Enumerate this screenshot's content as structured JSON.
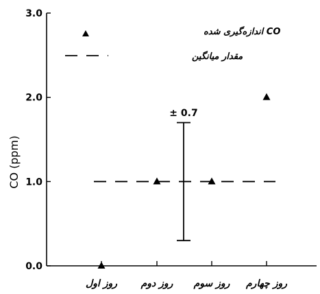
{
  "chart_data": {
    "type": "scatter",
    "title": "",
    "ylabel": "CO (ppm)",
    "xlabel": "",
    "ylim": [
      0,
      3
    ],
    "y_ticks": [
      {
        "value": 0,
        "label": "0.0"
      },
      {
        "value": 1,
        "label": "1.0"
      },
      {
        "value": 2,
        "label": "2.0"
      },
      {
        "value": 3,
        "label": "3.0"
      }
    ],
    "categories": [
      "روز اول",
      "روز دوم",
      "روز سوم",
      "روز چهارم"
    ],
    "series": [
      {
        "name": "CO اندازه‌گیری شده",
        "marker": "triangle",
        "values": [
          0.0,
          1.0,
          1.0,
          2.0
        ]
      }
    ],
    "mean": {
      "name": "مقدار میانگین",
      "value": 1.0,
      "style": "dashed"
    },
    "error_bar": {
      "center": 1.0,
      "low": 0.3,
      "high": 1.7,
      "label": "± 0.7",
      "position": "between روز دوم and روز سوم"
    },
    "legend": "top-left",
    "grid": false,
    "colors": {
      "marker": "#000000",
      "axis": "#000000"
    }
  }
}
